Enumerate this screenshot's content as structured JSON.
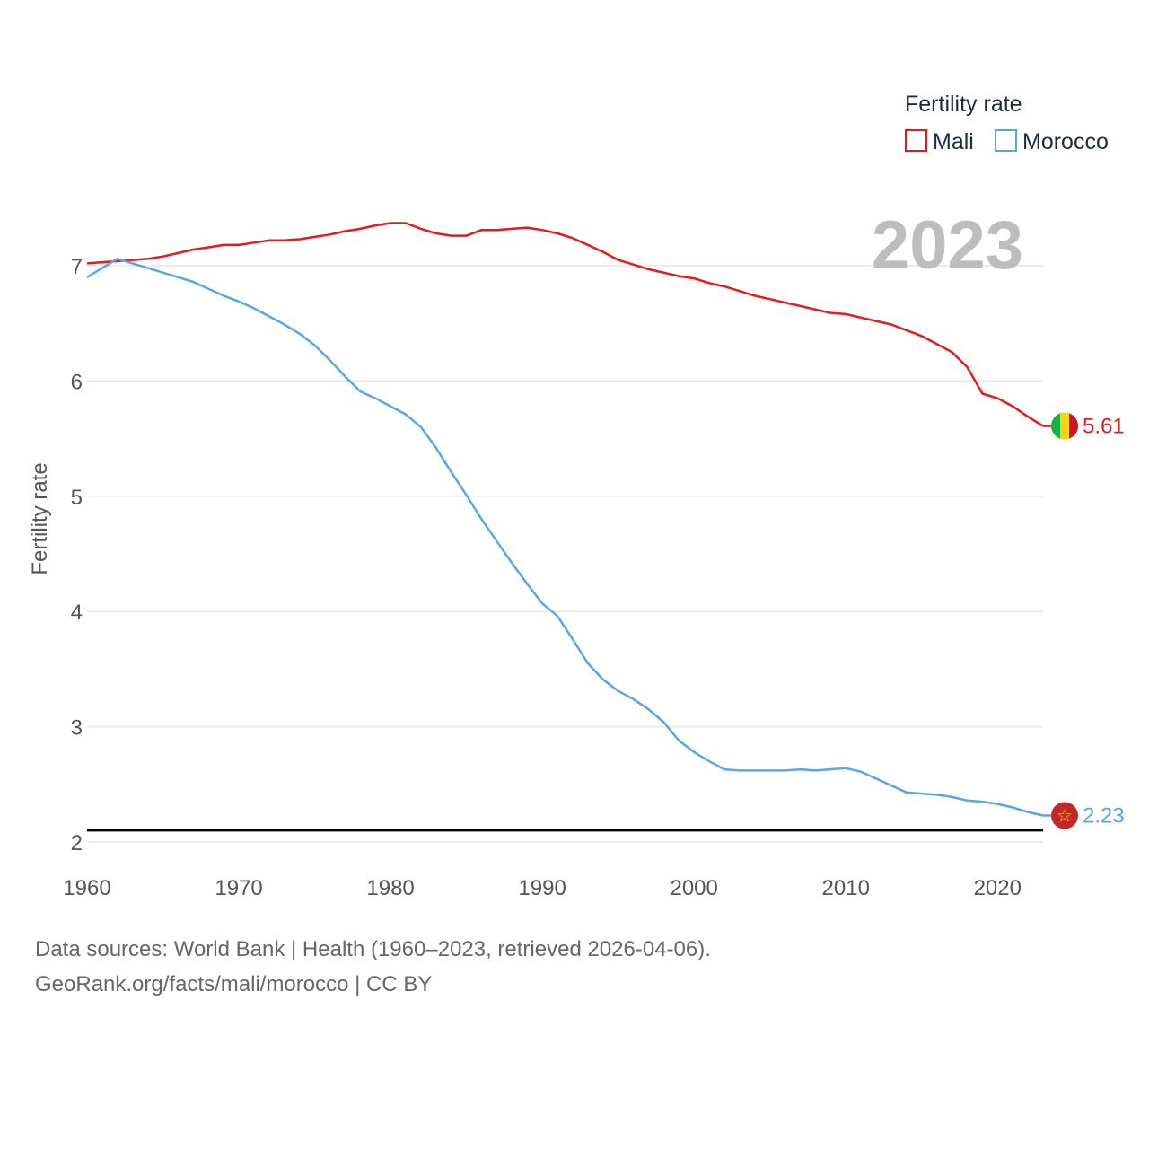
{
  "chart_data": {
    "type": "line",
    "xlabel": "",
    "ylabel": "Fertility rate",
    "xlim": [
      1960,
      2023
    ],
    "ylim": [
      2,
      7.5
    ],
    "x_ticks": [
      1960,
      1970,
      1980,
      1990,
      2000,
      2010,
      2020
    ],
    "y_ticks": [
      2,
      3,
      4,
      5,
      6,
      7
    ],
    "reference_line": 2.1,
    "year_label": "2023",
    "legend": {
      "title": "Fertility rate",
      "position": "top-right"
    },
    "x": [
      1960,
      1961,
      1962,
      1963,
      1964,
      1965,
      1966,
      1967,
      1968,
      1969,
      1970,
      1971,
      1972,
      1973,
      1974,
      1975,
      1976,
      1977,
      1978,
      1979,
      1980,
      1981,
      1982,
      1983,
      1984,
      1985,
      1986,
      1987,
      1988,
      1989,
      1990,
      1991,
      1992,
      1993,
      1994,
      1995,
      1996,
      1997,
      1998,
      1999,
      2000,
      2001,
      2002,
      2003,
      2004,
      2005,
      2006,
      2007,
      2008,
      2009,
      2010,
      2011,
      2012,
      2013,
      2014,
      2015,
      2016,
      2017,
      2018,
      2019,
      2020,
      2021,
      2022,
      2023
    ],
    "series": [
      {
        "name": "Mali",
        "color": "#e8191c",
        "end_label": "5.61",
        "values": [
          7.02,
          7.03,
          7.04,
          7.05,
          7.06,
          7.08,
          7.11,
          7.14,
          7.16,
          7.18,
          7.18,
          7.2,
          7.22,
          7.22,
          7.23,
          7.25,
          7.27,
          7.3,
          7.32,
          7.35,
          7.37,
          7.37,
          7.32,
          7.28,
          7.26,
          7.26,
          7.31,
          7.31,
          7.32,
          7.33,
          7.31,
          7.28,
          7.24,
          7.18,
          7.12,
          7.05,
          7.01,
          6.97,
          6.94,
          6.91,
          6.89,
          6.85,
          6.82,
          6.78,
          6.74,
          6.71,
          6.68,
          6.65,
          6.62,
          6.59,
          6.58,
          6.55,
          6.52,
          6.49,
          6.44,
          6.39,
          6.32,
          6.25,
          6.12,
          5.89,
          5.85,
          5.78,
          5.69,
          5.61
        ]
      },
      {
        "name": "Morocco",
        "color": "#5aa5e6",
        "end_label": "2.23",
        "values": [
          6.9,
          6.98,
          7.06,
          7.02,
          6.98,
          6.94,
          6.9,
          6.86,
          6.8,
          6.74,
          6.69,
          6.63,
          6.56,
          6.49,
          6.41,
          6.31,
          6.18,
          6.04,
          5.91,
          5.85,
          5.78,
          5.71,
          5.6,
          5.42,
          5.21,
          5.01,
          4.8,
          4.61,
          4.42,
          4.24,
          4.07,
          3.96,
          3.76,
          3.55,
          3.41,
          3.31,
          3.24,
          3.15,
          3.04,
          2.88,
          2.78,
          2.7,
          2.63,
          2.62,
          2.62,
          2.62,
          2.62,
          2.63,
          2.62,
          2.63,
          2.64,
          2.61,
          2.55,
          2.49,
          2.43,
          2.42,
          2.41,
          2.39,
          2.36,
          2.35,
          2.33,
          2.3,
          2.26,
          2.23
        ]
      }
    ]
  },
  "footer": {
    "line1": "Data sources: World Bank | Health (1960–2023, retrieved 2026-04-06).",
    "line2": "GeoRank.org/facts/mali/morocco | CC BY"
  },
  "flags": {
    "mali": [
      "#14b53a",
      "#fcd116",
      "#ce1126"
    ],
    "morocco": {
      "field": "#c1272d",
      "star": "#ffd700",
      "star_glyph": "☆"
    }
  }
}
